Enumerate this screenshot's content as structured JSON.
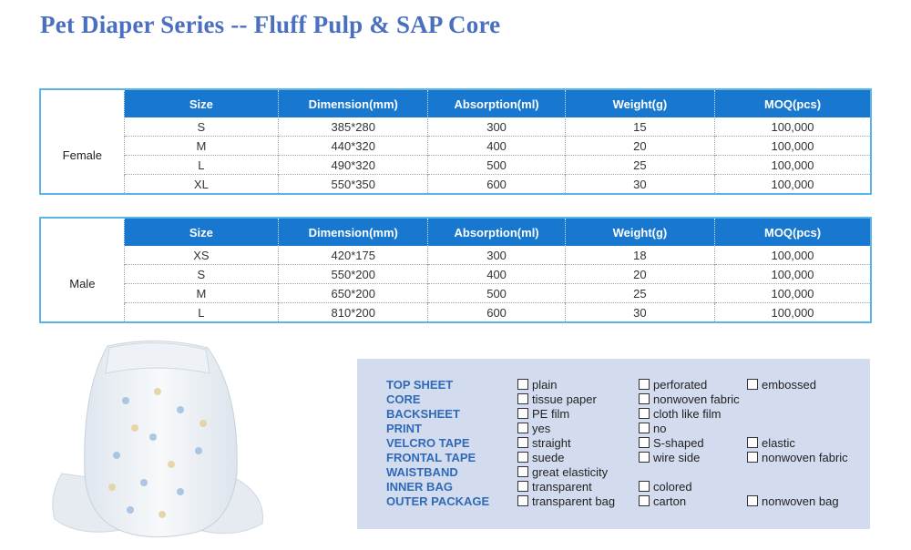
{
  "title": "Pet Diaper Series -- Fluff Pulp & SAP Core",
  "headers": [
    "Size",
    "Dimension(mm)",
    "Absorption(ml)",
    "Weight(g)",
    "MOQ(pcs)"
  ],
  "female": {
    "label": "Female",
    "rows": [
      [
        "S",
        "385*280",
        "300",
        "15",
        "100,000"
      ],
      [
        "M",
        "440*320",
        "400",
        "20",
        "100,000"
      ],
      [
        "L",
        "490*320",
        "500",
        "25",
        "100,000"
      ],
      [
        "XL",
        "550*350",
        "600",
        "30",
        "100,000"
      ]
    ]
  },
  "male": {
    "label": "Male",
    "rows": [
      [
        "XS",
        "420*175",
        "300",
        "18",
        "100,000"
      ],
      [
        "S",
        "550*200",
        "400",
        "20",
        "100,000"
      ],
      [
        "M",
        "650*200",
        "500",
        "25",
        "100,000"
      ],
      [
        "L",
        "810*200",
        "600",
        "30",
        "100,000"
      ]
    ]
  },
  "materials": [
    {
      "label": "TOP SHEET",
      "options": [
        "plain",
        "perforated",
        "embossed"
      ]
    },
    {
      "label": "CORE",
      "options": [
        "tissue paper",
        "nonwoven fabric",
        ""
      ]
    },
    {
      "label": "BACKSHEET",
      "options": [
        "PE film",
        "cloth like film",
        ""
      ]
    },
    {
      "label": "PRINT",
      "options": [
        "yes",
        "no",
        ""
      ]
    },
    {
      "label": "VELCRO TAPE",
      "options": [
        "straight",
        "S-shaped",
        "elastic"
      ]
    },
    {
      "label": "FRONTAL TAPE",
      "options": [
        "suede",
        "wire side",
        "nonwoven fabric"
      ]
    },
    {
      "label": "WAISTBAND",
      "options": [
        "great elasticity",
        "",
        ""
      ]
    },
    {
      "label": "INNER BAG",
      "options": [
        "transparent",
        "colored",
        ""
      ]
    },
    {
      "label": "OUTER PACKAGE",
      "options": [
        "transparent bag",
        "carton",
        "nonwoven bag"
      ]
    }
  ],
  "colors": {
    "title": "#4a6fc0",
    "header": "#1878cf",
    "border": "#5ab4e6",
    "panel": "#d3dcee",
    "label": "#2f6ab8"
  }
}
